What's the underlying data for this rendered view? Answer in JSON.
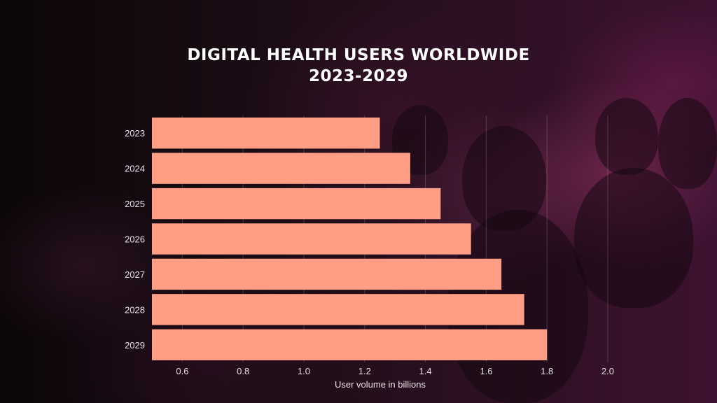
{
  "chart_data": {
    "type": "bar",
    "orientation": "horizontal",
    "title": "DIGITAL HEALTH USERS WORLDWIDE",
    "subtitle": "2023-2029",
    "categories": [
      "2023",
      "2024",
      "2025",
      "2026",
      "2027",
      "2028",
      "2029"
    ],
    "values": [
      1.25,
      1.35,
      1.45,
      1.55,
      1.65,
      1.725,
      1.8
    ],
    "xlabel": "User volume in billions",
    "ylabel": "",
    "xlim": [
      0.5,
      2.0
    ],
    "xticks": [
      "0.6",
      "0.8",
      "1.0",
      "1.2",
      "1.4",
      "1.6",
      "1.8",
      "2.0"
    ],
    "grid": true,
    "legend": "none",
    "bar_color": "#ff9e85",
    "grid_color": "#ffffff"
  }
}
